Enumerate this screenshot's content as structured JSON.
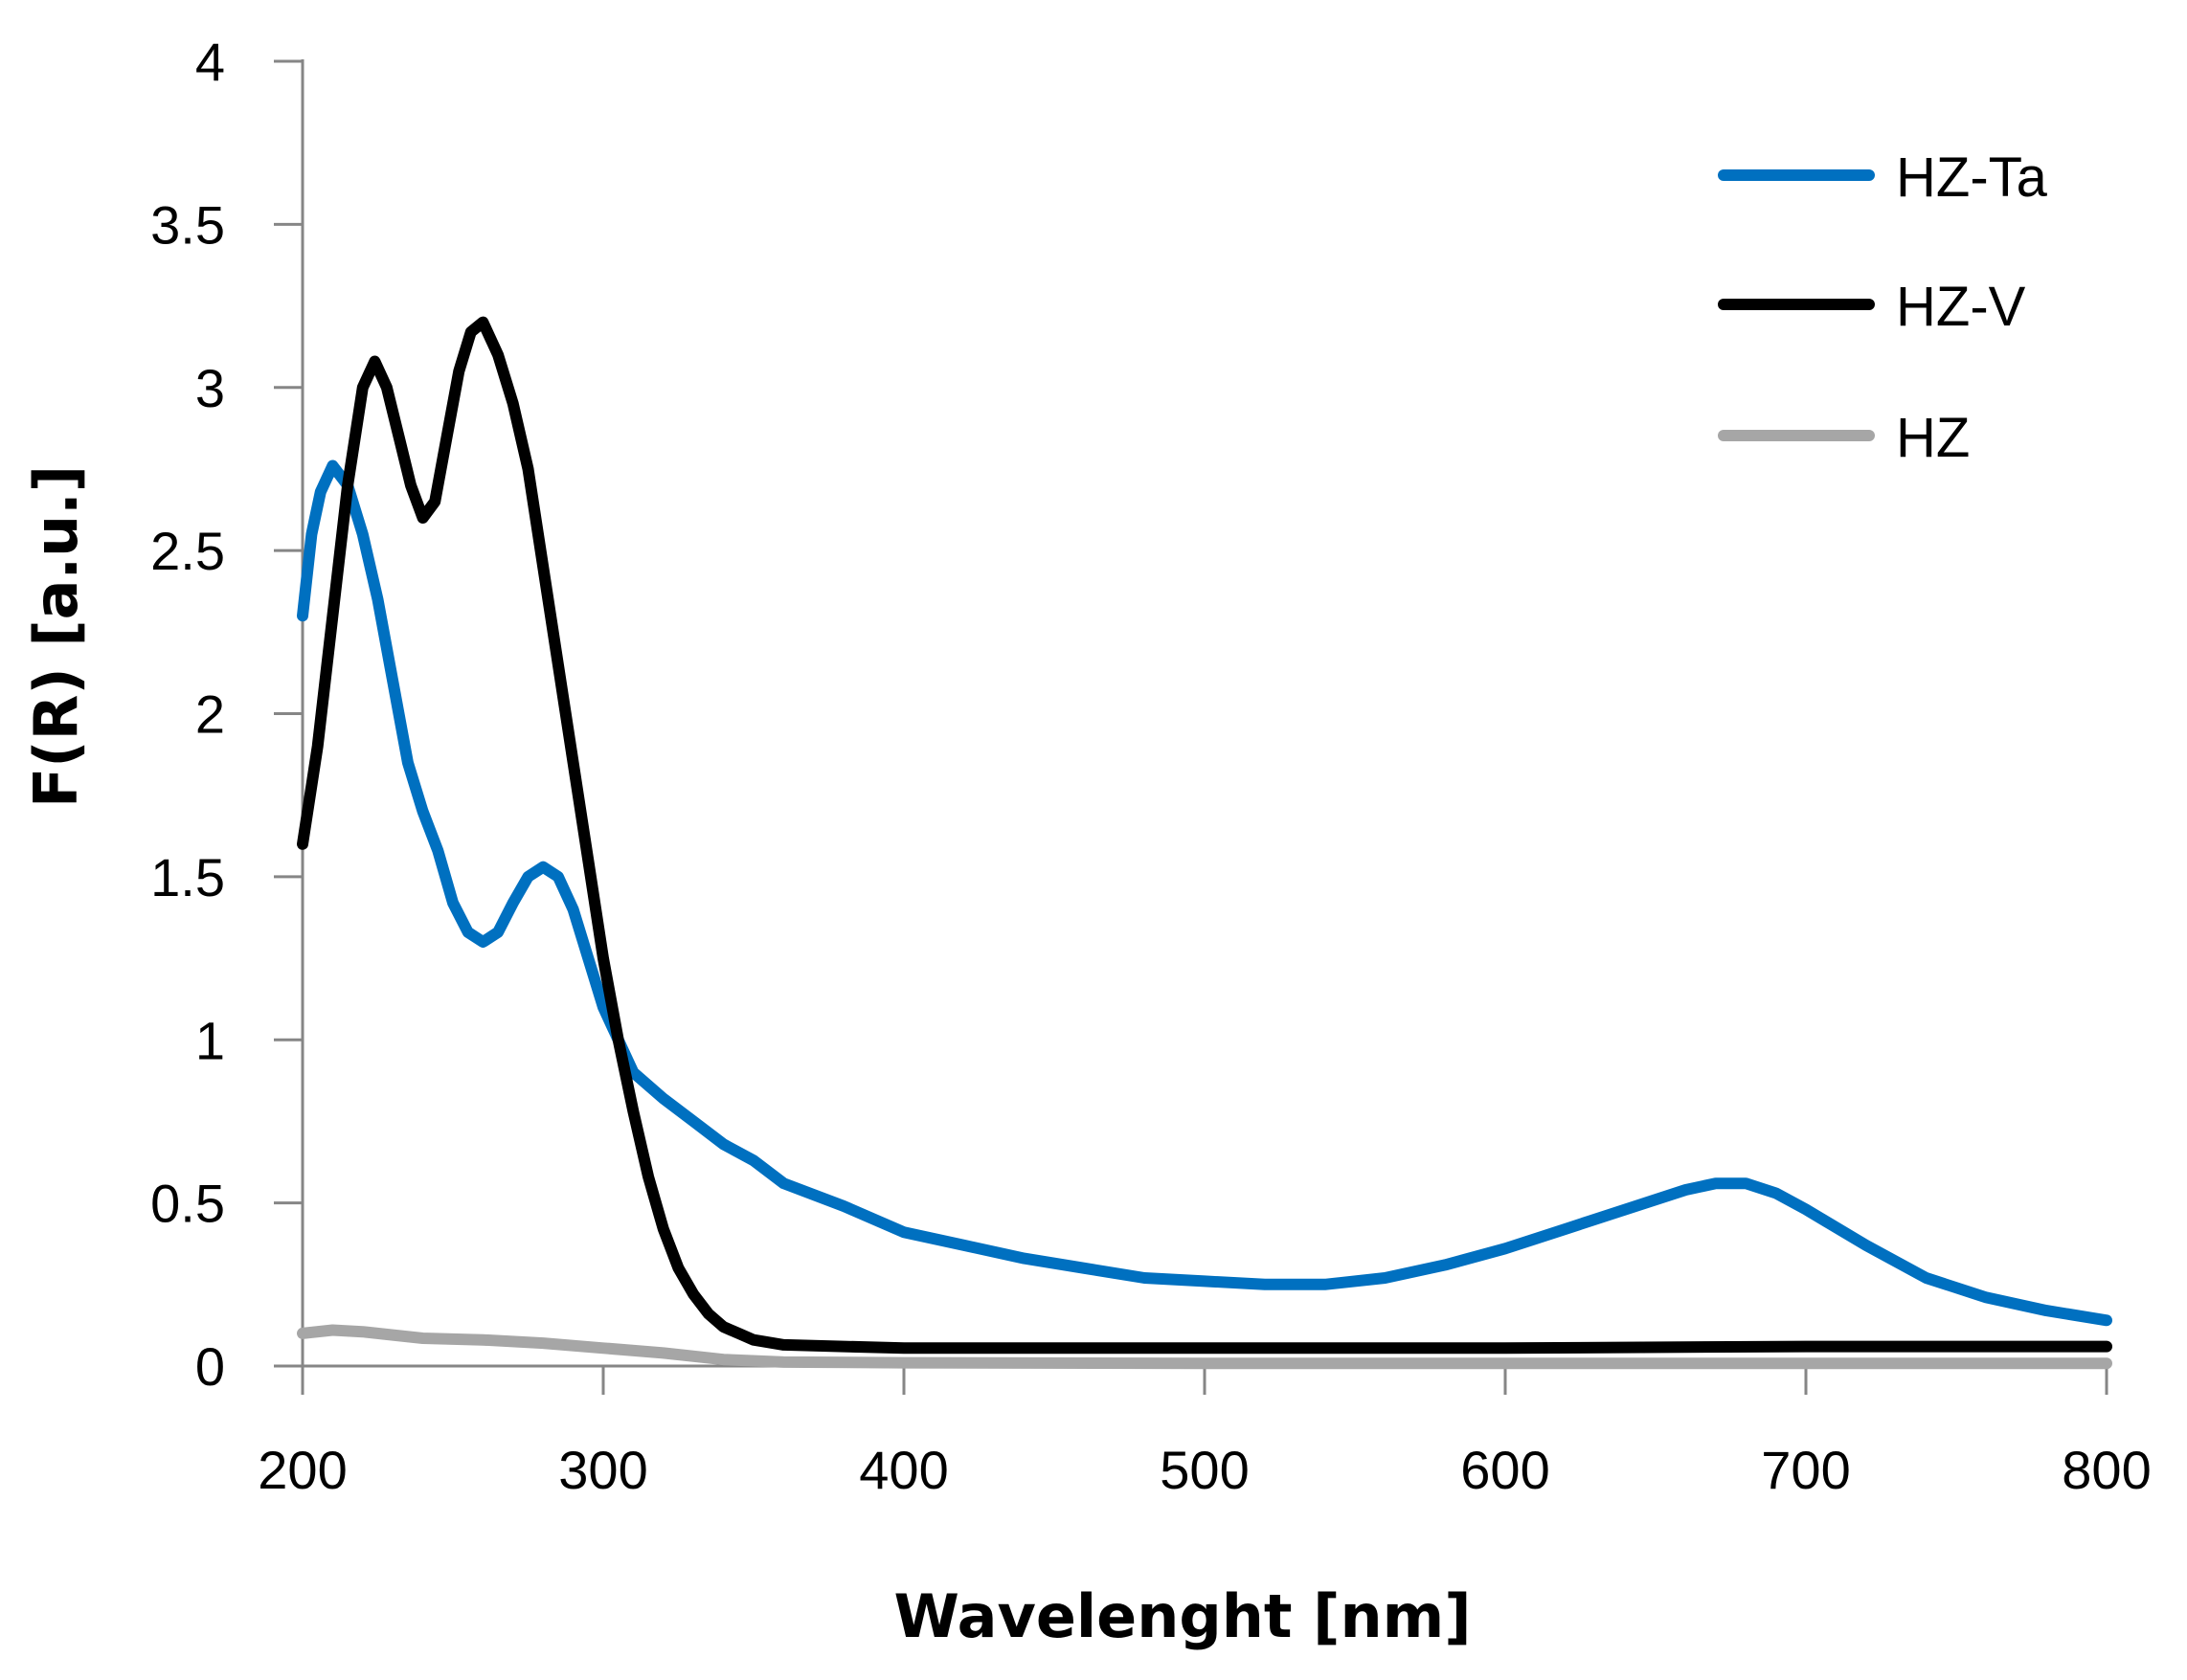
{
  "chart_data": {
    "type": "line",
    "title": "",
    "xlabel": "Wavelenght [nm]",
    "ylabel": "F(R) [a.u.]",
    "xlim": [
      200,
      800
    ],
    "ylim": [
      0,
      4
    ],
    "x_ticks": [
      "200",
      "300",
      "400",
      "500",
      "600",
      "700",
      "800"
    ],
    "y_ticks": [
      "0",
      "0.5",
      "1",
      "1.5",
      "2",
      "2.5",
      "3",
      "3.5",
      "4"
    ],
    "grid": false,
    "legend_position": "top-right",
    "series": [
      {
        "name": "HZ-Ta",
        "color": "#0070C0",
        "points": [
          [
            200,
            2.3
          ],
          [
            203,
            2.55
          ],
          [
            206,
            2.68
          ],
          [
            210,
            2.76
          ],
          [
            215,
            2.7
          ],
          [
            220,
            2.55
          ],
          [
            225,
            2.35
          ],
          [
            230,
            2.1
          ],
          [
            235,
            1.85
          ],
          [
            240,
            1.7
          ],
          [
            245,
            1.58
          ],
          [
            250,
            1.42
          ],
          [
            255,
            1.33
          ],
          [
            260,
            1.3
          ],
          [
            265,
            1.33
          ],
          [
            270,
            1.42
          ],
          [
            275,
            1.5
          ],
          [
            280,
            1.53
          ],
          [
            285,
            1.5
          ],
          [
            290,
            1.4
          ],
          [
            295,
            1.25
          ],
          [
            300,
            1.1
          ],
          [
            305,
            1.0
          ],
          [
            310,
            0.9
          ],
          [
            320,
            0.82
          ],
          [
            330,
            0.75
          ],
          [
            340,
            0.68
          ],
          [
            350,
            0.63
          ],
          [
            360,
            0.56
          ],
          [
            380,
            0.49
          ],
          [
            400,
            0.41
          ],
          [
            420,
            0.37
          ],
          [
            440,
            0.33
          ],
          [
            460,
            0.3
          ],
          [
            480,
            0.27
          ],
          [
            500,
            0.26
          ],
          [
            520,
            0.25
          ],
          [
            540,
            0.25
          ],
          [
            560,
            0.27
          ],
          [
            580,
            0.31
          ],
          [
            600,
            0.36
          ],
          [
            620,
            0.42
          ],
          [
            640,
            0.48
          ],
          [
            660,
            0.54
          ],
          [
            670,
            0.56
          ],
          [
            680,
            0.56
          ],
          [
            690,
            0.53
          ],
          [
            700,
            0.48
          ],
          [
            720,
            0.37
          ],
          [
            740,
            0.27
          ],
          [
            760,
            0.21
          ],
          [
            780,
            0.17
          ],
          [
            800,
            0.14
          ]
        ]
      },
      {
        "name": "HZ-V",
        "color": "#000000",
        "points": [
          [
            200,
            1.6
          ],
          [
            205,
            1.9
          ],
          [
            210,
            2.3
          ],
          [
            215,
            2.7
          ],
          [
            220,
            3.0
          ],
          [
            224,
            3.08
          ],
          [
            228,
            3.0
          ],
          [
            232,
            2.85
          ],
          [
            236,
            2.7
          ],
          [
            240,
            2.6
          ],
          [
            244,
            2.65
          ],
          [
            248,
            2.85
          ],
          [
            252,
            3.05
          ],
          [
            256,
            3.17
          ],
          [
            260,
            3.2
          ],
          [
            265,
            3.1
          ],
          [
            270,
            2.95
          ],
          [
            275,
            2.75
          ],
          [
            280,
            2.45
          ],
          [
            285,
            2.15
          ],
          [
            290,
            1.85
          ],
          [
            295,
            1.55
          ],
          [
            300,
            1.25
          ],
          [
            305,
            1.0
          ],
          [
            310,
            0.78
          ],
          [
            315,
            0.58
          ],
          [
            320,
            0.42
          ],
          [
            325,
            0.3
          ],
          [
            330,
            0.22
          ],
          [
            335,
            0.16
          ],
          [
            340,
            0.12
          ],
          [
            345,
            0.1
          ],
          [
            350,
            0.08
          ],
          [
            360,
            0.065
          ],
          [
            380,
            0.06
          ],
          [
            400,
            0.055
          ],
          [
            500,
            0.055
          ],
          [
            600,
            0.055
          ],
          [
            700,
            0.06
          ],
          [
            800,
            0.06
          ]
        ]
      },
      {
        "name": "HZ",
        "color": "#A6A6A6",
        "points": [
          [
            200,
            0.1
          ],
          [
            210,
            0.11
          ],
          [
            220,
            0.105
          ],
          [
            230,
            0.095
          ],
          [
            240,
            0.085
          ],
          [
            260,
            0.08
          ],
          [
            280,
            0.07
          ],
          [
            300,
            0.055
          ],
          [
            320,
            0.04
          ],
          [
            340,
            0.02
          ],
          [
            360,
            0.012
          ],
          [
            400,
            0.01
          ],
          [
            500,
            0.008
          ],
          [
            600,
            0.008
          ],
          [
            700,
            0.008
          ],
          [
            800,
            0.008
          ]
        ]
      }
    ]
  }
}
